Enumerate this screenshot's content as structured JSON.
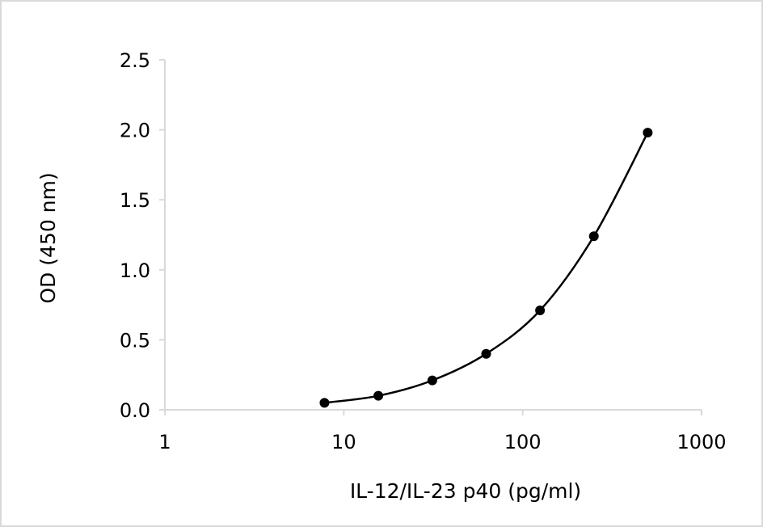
{
  "chart_data": {
    "type": "scatter",
    "title": "",
    "xlabel": "IL-12/IL-23 p40 (pg/ml)",
    "ylabel": "OD (450 nm)",
    "x_scale": "log",
    "xlim": [
      1,
      1000
    ],
    "ylim": [
      0.0,
      2.5
    ],
    "x_ticks": [
      "1",
      "10",
      "100",
      "1000"
    ],
    "y_ticks": [
      "0.0",
      "0.5",
      "1.0",
      "1.5",
      "2.0",
      "2.5"
    ],
    "grid": false,
    "legend": "none",
    "series": [
      {
        "x": [
          7.8,
          15.6,
          31.25,
          62.5,
          125,
          250,
          500
        ],
        "y": [
          0.05,
          0.1,
          0.21,
          0.4,
          0.71,
          1.24,
          1.98
        ],
        "marker": "circle",
        "line": "smooth",
        "color": "#000000"
      }
    ]
  }
}
